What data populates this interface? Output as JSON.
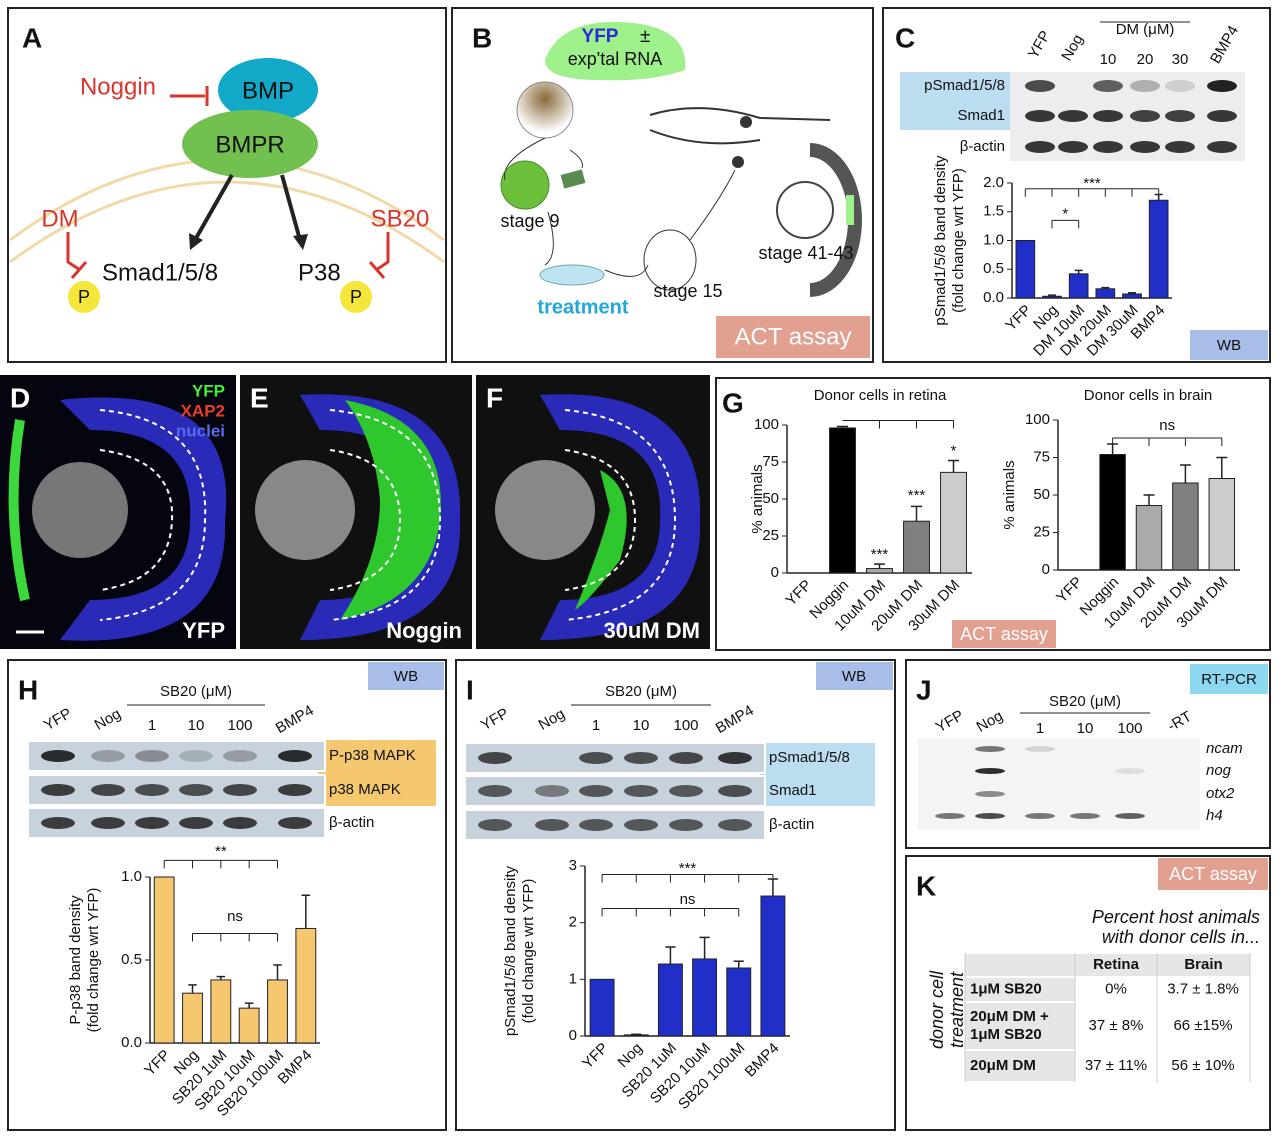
{
  "panels": {
    "a": {
      "label": "A",
      "noggin": "Noggin",
      "bmp": "BMP",
      "bmpr": "BMPR",
      "dm": "DM",
      "smad": "Smad1/5/8",
      "p38": "P38",
      "sb20": "SB20",
      "p": "P"
    },
    "b": {
      "label": "B",
      "yfp": "YFP",
      "pm": "±",
      "rna": "exp'tal RNA",
      "stage9": "stage 9",
      "treatment": "treatment",
      "stage15": "stage 15",
      "stage41": "stage 41-43",
      "tag": "ACT assay"
    },
    "c": {
      "label": "C",
      "lanes": [
        "YFP",
        "Nog",
        "BMP4"
      ],
      "group": "DM (μM)",
      "doses": [
        "10",
        "20",
        "30"
      ],
      "rows": [
        "pSmad1/5/8",
        "Smad1",
        "β-actin"
      ],
      "tag": "WB"
    },
    "d": {
      "label": "D",
      "yfp": "YFP",
      "xap2": "XAP2",
      "nuclei": "nuclei",
      "caption": "YFP"
    },
    "e": {
      "label": "E",
      "caption": "Noggin"
    },
    "f": {
      "label": "F",
      "caption": "30uM DM"
    },
    "g": {
      "label": "G",
      "tag": "ACT assay"
    },
    "h": {
      "label": "H",
      "tag": "WB",
      "lanes": [
        "YFP",
        "Nog",
        "BMP4"
      ],
      "group": "SB20 (μM)",
      "doses": [
        "1",
        "10",
        "100"
      ],
      "rows": [
        "P-p38 MAPK",
        "p38 MAPK",
        "β-actin"
      ]
    },
    "i": {
      "label": "I",
      "tag": "WB",
      "lanes": [
        "YFP",
        "Nog",
        "BMP4"
      ],
      "group": "SB20 (μM)",
      "doses": [
        "1",
        "10",
        "100"
      ],
      "rows": [
        "pSmad1/5/8",
        "Smad1",
        "β-actin"
      ]
    },
    "j": {
      "label": "J",
      "tag": "RT-PCR",
      "lanes": [
        "YFP",
        "Nog",
        "-RT"
      ],
      "group": "SB20 (μM)",
      "doses": [
        "1",
        "10",
        "100"
      ],
      "genes": [
        "ncam",
        "nog",
        "otx2",
        "h4"
      ]
    },
    "k": {
      "label": "K",
      "tag": "ACT assay",
      "heading": [
        "Percent host animals",
        "with donor cells in..."
      ],
      "side": [
        "donor cell",
        "treatment"
      ],
      "columns": [
        "Retina",
        "Brain"
      ],
      "rows": [
        {
          "name": [
            "1μM SB20"
          ],
          "retina": "0%",
          "brain": "3.7 ± 1.8%"
        },
        {
          "name": [
            "20μM DM +",
            "1μM SB20"
          ],
          "retina": "37 ± 8%",
          "brain": "66 ±15%"
        },
        {
          "name": [
            "20μM DM"
          ],
          "retina": "37 ± 11%",
          "brain": "56 ± 10%"
        }
      ]
    }
  },
  "chart_data": [
    {
      "type": "bar",
      "y_label": [
        "pSmad1/5/8 band density",
        "(fold change wrt YFP)"
      ],
      "categories": [
        "YFP",
        "Nog",
        "DM 10uM",
        "DM 20uM",
        "DM 30uM",
        "BMP4"
      ],
      "values": [
        1.0,
        0.03,
        0.42,
        0.16,
        0.07,
        1.7
      ],
      "errors": [
        0,
        0.02,
        0.06,
        0.02,
        0.02,
        0.1
      ],
      "color": "#1f2fc8",
      "ylim": [
        0,
        2
      ],
      "yticks": [
        {
          "value": 0,
          "label": "0.0"
        },
        {
          "value": 0.5,
          "label": "0.5"
        },
        {
          "value": 1,
          "label": "1.0"
        },
        {
          "value": 1.5,
          "label": "1.5"
        },
        {
          "value": 2,
          "label": "2.0"
        }
      ],
      "annotations": [
        "***",
        "*"
      ]
    },
    {
      "type": "bar",
      "title": "Donor cells in retina",
      "y_label": [
        "% animals"
      ],
      "categories": [
        "YFP",
        "Noggin",
        "10uM DM",
        "20uM DM",
        "30uM DM"
      ],
      "values": [
        0,
        98,
        3,
        35,
        68
      ],
      "errors": [
        0,
        1,
        3,
        10,
        8
      ],
      "colors": [
        "#000000",
        "#000000",
        "#aaaaaa",
        "#808080",
        "#cccccc"
      ],
      "ylim": [
        0,
        100
      ],
      "yticks": [
        0,
        25,
        50,
        75,
        100
      ],
      "annotations": [
        "***",
        "***",
        "*"
      ]
    },
    {
      "type": "bar",
      "title": "Donor cells in brain",
      "y_label": [
        "% animals"
      ],
      "categories": [
        "YFP",
        "Noggin",
        "10uM DM",
        "20uM DM",
        "30uM DM"
      ],
      "values": [
        0,
        77,
        43,
        58,
        61
      ],
      "errors": [
        0,
        7,
        7,
        12,
        14
      ],
      "colors": [
        "#000000",
        "#000000",
        "#aaaaaa",
        "#808080",
        "#cccccc"
      ],
      "ylim": [
        0,
        100
      ],
      "yticks": [
        0,
        25,
        50,
        75,
        100
      ],
      "annotations": [
        "ns"
      ]
    },
    {
      "type": "bar",
      "y_label": [
        "P-p38 band density",
        "(fold change wrt YFP)"
      ],
      "categories": [
        "YFP",
        "Nog",
        "SB20 1uM",
        "SB20 10uM",
        "SB20 100uM",
        "BMP4"
      ],
      "values": [
        1.0,
        0.3,
        0.38,
        0.21,
        0.38,
        0.69
      ],
      "errors": [
        0,
        0.05,
        0.02,
        0.03,
        0.09,
        0.2
      ],
      "color": "#f5c870",
      "ylim": [
        0,
        1
      ],
      "yticks": [
        {
          "value": 0,
          "label": "0.0"
        },
        {
          "value": 0.5,
          "label": "0.5"
        },
        {
          "value": 1,
          "label": "1.0"
        }
      ],
      "annotations": [
        "**",
        "ns"
      ]
    },
    {
      "type": "bar",
      "y_label": [
        "pSmad1/5/8 band density",
        "(fold change wrt YFP)"
      ],
      "categories": [
        "YFP",
        "Nog",
        "SB20 1uM",
        "SB20 10uM",
        "SB20 100uM",
        "BMP4"
      ],
      "values": [
        1.0,
        0.02,
        1.27,
        1.36,
        1.2,
        2.47
      ],
      "errors": [
        0,
        0.01,
        0.3,
        0.38,
        0.12,
        0.3
      ],
      "color": "#1f2fc8",
      "ylim": [
        0,
        3
      ],
      "yticks": [
        0,
        1,
        2,
        3
      ],
      "annotations": [
        "***",
        "ns"
      ]
    }
  ]
}
